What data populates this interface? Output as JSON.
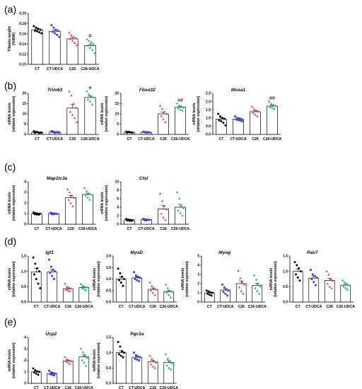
{
  "colors": {
    "CT": "#000000",
    "CT-UDCA": "#3b45d6",
    "C26": "#e8394a",
    "C26-UDCA": "#1fb888"
  },
  "chart_data": [
    {
      "type": "bar",
      "panel": "(a)",
      "title": "",
      "ylabel": "Tibialis weight\n(%IBW)",
      "ylim": [
        0.1,
        0.2
      ],
      "ticks": [
        "0.10",
        "0.12",
        "0.14",
        "0.16",
        "0.18",
        "0.20"
      ],
      "categories": [
        "CT",
        "CT-UDCA",
        "C26",
        "C26-UDCA"
      ],
      "values": [
        0.168,
        0.165,
        0.15,
        0.137
      ],
      "sig": [
        "",
        "",
        "",
        "#"
      ],
      "points": [
        [
          0.175,
          0.172,
          0.17,
          0.168,
          0.166,
          0.165,
          0.163,
          0.161
        ],
        [
          0.177,
          0.172,
          0.168,
          0.166,
          0.164,
          0.161,
          0.158,
          0.154
        ],
        [
          0.162,
          0.157,
          0.154,
          0.152,
          0.15,
          0.146,
          0.142,
          0.138
        ],
        [
          0.149,
          0.146,
          0.143,
          0.14,
          0.136,
          0.132,
          0.128,
          0.122
        ]
      ]
    },
    {
      "type": "bar",
      "panel": "(b)",
      "title": "Trim63",
      "ylabel": "mRNA levels\n(relative expression)",
      "ylim": [
        0,
        20
      ],
      "ticks": [
        "0",
        "5",
        "10",
        "15",
        "20"
      ],
      "categories": [
        "CT",
        "CT-UDCA",
        "C26",
        "C26-UDCA"
      ],
      "values": [
        1.0,
        1.1,
        12.8,
        18.0
      ],
      "sig": [
        "",
        "",
        "",
        "#"
      ],
      "points": [
        [
          1.5,
          1.2,
          1.0,
          0.9,
          0.8,
          1.1,
          0.7,
          0.9
        ],
        [
          1.6,
          1.3,
          1.0,
          0.9,
          1.2,
          0.8,
          1.1,
          1.0
        ],
        [
          21.0,
          19.0,
          15.0,
          13.0,
          11.0,
          9.5,
          8.0,
          6.0
        ],
        [
          21.0,
          19.5,
          18.5,
          18.0,
          17.0,
          16.0,
          14.5
        ]
      ]
    },
    {
      "type": "bar",
      "panel": "(b)",
      "title": "Fbxo32",
      "ylabel": "mRNA levels\n(relative expression)",
      "ylim": [
        0,
        20
      ],
      "ticks": [
        "0",
        "5",
        "10",
        "15",
        "20"
      ],
      "categories": [
        "CT",
        "CT-UDCA",
        "C26",
        "C26-UDCA"
      ],
      "values": [
        1.0,
        1.0,
        10.0,
        13.2
      ],
      "sig": [
        "",
        "",
        "",
        "##"
      ],
      "points": [
        [
          1.4,
          1.2,
          1.0,
          0.9,
          0.8,
          1.1,
          0.9
        ],
        [
          1.3,
          1.1,
          1.0,
          0.9,
          1.2,
          0.8,
          1.0
        ],
        [
          14.0,
          12.5,
          11.0,
          10.0,
          9.0,
          7.5,
          6.0
        ],
        [
          15.0,
          14.0,
          13.5,
          13.0,
          12.5,
          12.0,
          11.5
        ]
      ]
    },
    {
      "type": "bar",
      "panel": "(b)",
      "title": "Musa1",
      "ylabel": "mRNA levels\n(relative expression)",
      "ylim": [
        0.0,
        2.5
      ],
      "ticks": [
        "0.0",
        "0.5",
        "1.0",
        "1.5",
        "2.0",
        "2.5"
      ],
      "categories": [
        "CT",
        "CT-UDCA",
        "C26",
        "C26-UDCA"
      ],
      "values": [
        0.93,
        0.93,
        1.38,
        1.72
      ],
      "sig": [
        "",
        "",
        "",
        "##"
      ],
      "points": [
        [
          1.25,
          1.1,
          1.0,
          0.95,
          0.85,
          0.8,
          0.7,
          0.55
        ],
        [
          1.1,
          1.0,
          0.97,
          0.93,
          0.9,
          0.87,
          0.84,
          0.8
        ],
        [
          1.7,
          1.55,
          1.45,
          1.4,
          1.3,
          1.2,
          1.1
        ],
        [
          2.0,
          1.85,
          1.8,
          1.75,
          1.65,
          1.6,
          1.55
        ]
      ]
    },
    {
      "type": "bar",
      "panel": "(c)",
      "title": "Map1lc3a",
      "ylabel": "mRNA levels\n(relative expression)",
      "ylim": [
        0,
        4
      ],
      "ticks": [
        "0",
        "1",
        "2",
        "3",
        "4"
      ],
      "categories": [
        "CT",
        "CT-UDCA",
        "C26",
        "C26-UDCA"
      ],
      "values": [
        1.0,
        1.0,
        2.5,
        2.8
      ],
      "sig": [
        "",
        "",
        "",
        ""
      ],
      "points": [
        [
          1.1,
          1.05,
          1.0,
          0.98,
          0.95,
          0.92,
          0.9
        ],
        [
          1.08,
          1.03,
          1.0,
          0.97,
          0.95,
          0.93
        ],
        [
          3.3,
          3.0,
          2.7,
          2.5,
          2.3,
          2.0,
          1.7
        ],
        [
          3.4,
          3.1,
          2.9,
          2.8,
          2.7,
          2.5,
          2.3
        ]
      ]
    },
    {
      "type": "bar",
      "panel": "(c)",
      "title": "Ctsl",
      "ylabel": "mRNA levels\n(relative expression)",
      "ylim": [
        0,
        10
      ],
      "ticks": [
        "0",
        "2",
        "4",
        "6",
        "8",
        "10"
      ],
      "categories": [
        "CT",
        "CT-UDCA",
        "C26",
        "C26-UDCA"
      ],
      "values": [
        1.0,
        1.1,
        3.6,
        4.0
      ],
      "sig": [
        "",
        "",
        "",
        ""
      ],
      "points": [
        [
          1.2,
          1.1,
          1.0,
          0.95,
          0.9,
          0.85,
          0.8
        ],
        [
          1.25,
          1.15,
          1.05,
          1.0,
          0.95,
          0.9
        ],
        [
          7.2,
          5.5,
          4.3,
          3.5,
          2.5,
          1.6,
          1.0
        ],
        [
          7.5,
          6.0,
          4.2,
          3.8,
          3.2,
          2.6,
          2.0
        ]
      ]
    },
    {
      "type": "bar",
      "panel": "(d)",
      "title": "Igf1",
      "ylabel": "mRNA levels\n(relative expression)",
      "ylim": [
        0.0,
        1.5
      ],
      "ticks": [
        "0.0",
        "0.5",
        "1.0",
        "1.5"
      ],
      "categories": [
        "CT",
        "CT-UDCA",
        "C26",
        "C26-UDCA"
      ],
      "values": [
        0.98,
        0.98,
        0.43,
        0.47
      ],
      "sig": [
        "",
        "",
        "",
        ""
      ],
      "points": [
        [
          1.45,
          1.25,
          1.1,
          1.0,
          0.9,
          0.75,
          0.6,
          0.45
        ],
        [
          1.38,
          1.15,
          1.05,
          1.0,
          0.95,
          0.85,
          0.75
        ],
        [
          0.6,
          0.5,
          0.47,
          0.44,
          0.4,
          0.38,
          0.35
        ],
        [
          0.58,
          0.52,
          0.49,
          0.47,
          0.45,
          0.42,
          0.38
        ]
      ]
    },
    {
      "type": "bar",
      "panel": "(d)",
      "title": "MyoD",
      "ylabel": "mRNA levels\n(relative expression)",
      "ylim": [
        0.0,
        2.0
      ],
      "ticks": [
        "0.0",
        "0.5",
        "1.0",
        "1.5",
        "2.0"
      ],
      "categories": [
        "CT",
        "CT-UDCA",
        "C26",
        "C26-UDCA"
      ],
      "values": [
        1.0,
        1.05,
        0.55,
        0.45
      ],
      "sig": [
        "",
        "",
        "",
        ""
      ],
      "points": [
        [
          1.45,
          1.25,
          1.1,
          1.0,
          0.95,
          0.85,
          0.7
        ],
        [
          1.3,
          1.15,
          1.1,
          1.05,
          1.0,
          0.95,
          0.9
        ],
        [
          0.85,
          0.7,
          0.6,
          0.55,
          0.5,
          0.4,
          0.3
        ],
        [
          0.75,
          0.6,
          0.5,
          0.45,
          0.4,
          0.3,
          0.2
        ]
      ]
    },
    {
      "type": "bar",
      "panel": "(d)",
      "title": "Myog",
      "ylabel": "mRNA levels\n(relative expression)",
      "ylim": [
        0,
        5
      ],
      "ticks": [
        "0",
        "1",
        "2",
        "3",
        "4",
        "5"
      ],
      "categories": [
        "CT",
        "CT-UDCA",
        "C26",
        "C26-UDCA"
      ],
      "values": [
        1.0,
        1.3,
        2.0,
        1.8
      ],
      "sig": [
        "",
        "",
        "",
        ""
      ],
      "points": [
        [
          1.25,
          1.15,
          1.05,
          1.0,
          0.9,
          0.8,
          0.7
        ],
        [
          1.9,
          1.6,
          1.4,
          1.25,
          1.1,
          0.9,
          0.7
        ],
        [
          3.4,
          2.6,
          2.2,
          1.9,
          1.6,
          1.2,
          0.9
        ],
        [
          2.9,
          2.4,
          2.0,
          1.7,
          1.5,
          1.2,
          0.9
        ]
      ]
    },
    {
      "type": "bar",
      "panel": "(d)",
      "title": "Pax7",
      "ylabel": "mRNA levels\n(relative expression)",
      "ylim": [
        0.0,
        1.5
      ],
      "ticks": [
        "0.0",
        "0.5",
        "1.0",
        "1.5"
      ],
      "categories": [
        "CT",
        "CT-UDCA",
        "C26",
        "C26-UDCA"
      ],
      "values": [
        1.0,
        0.78,
        0.7,
        0.55
      ],
      "sig": [
        "",
        "",
        "",
        ""
      ],
      "points": [
        [
          1.3,
          1.2,
          1.1,
          1.0,
          0.9,
          0.8,
          0.7
        ],
        [
          1.05,
          0.9,
          0.85,
          0.8,
          0.75,
          0.65,
          0.55
        ],
        [
          1.0,
          0.9,
          0.75,
          0.7,
          0.6,
          0.5,
          0.45
        ],
        [
          0.7,
          0.65,
          0.6,
          0.55,
          0.5,
          0.45,
          0.4
        ]
      ]
    },
    {
      "type": "bar",
      "panel": "(e)",
      "title": "Ucp2",
      "ylabel": "mRNA levels\n(relative expression)",
      "ylim": [
        0,
        4
      ],
      "ticks": [
        "0",
        "1",
        "2",
        "3",
        "4"
      ],
      "categories": [
        "CT",
        "CT-UDCA",
        "C26",
        "C26-UDCA"
      ],
      "values": [
        1.0,
        0.85,
        1.95,
        2.3
      ],
      "sig": [
        "",
        "",
        "",
        ""
      ],
      "points": [
        [
          1.3,
          1.15,
          1.05,
          1.0,
          0.95,
          0.85,
          0.75
        ],
        [
          1.1,
          0.95,
          0.9,
          0.85,
          0.8,
          0.75,
          0.7
        ],
        [
          2.3,
          2.1,
          2.0,
          1.95,
          1.9,
          1.8,
          1.7
        ],
        [
          3.0,
          2.7,
          2.4,
          2.2,
          2.0,
          1.8,
          1.5
        ]
      ]
    },
    {
      "type": "bar",
      "panel": "(e)",
      "title": "Pgc1a",
      "ylabel": "mRNA levels\n(relative expression)",
      "ylim": [
        0.0,
        1.5
      ],
      "ticks": [
        "0.0",
        "0.5",
        "1.0",
        "1.5"
      ],
      "categories": [
        "CT",
        "CT-UDCA",
        "C26",
        "C26-UDCA"
      ],
      "values": [
        1.0,
        0.85,
        0.7,
        0.68
      ],
      "sig": [
        "",
        "",
        "",
        ""
      ],
      "points": [
        [
          1.35,
          1.2,
          1.05,
          1.0,
          0.95,
          0.9,
          0.85
        ],
        [
          1.0,
          0.92,
          0.88,
          0.85,
          0.8,
          0.78,
          0.75
        ],
        [
          0.9,
          0.8,
          0.72,
          0.68,
          0.62,
          0.55,
          0.5
        ],
        [
          0.95,
          0.8,
          0.72,
          0.65,
          0.58,
          0.5,
          0.45
        ]
      ]
    }
  ]
}
